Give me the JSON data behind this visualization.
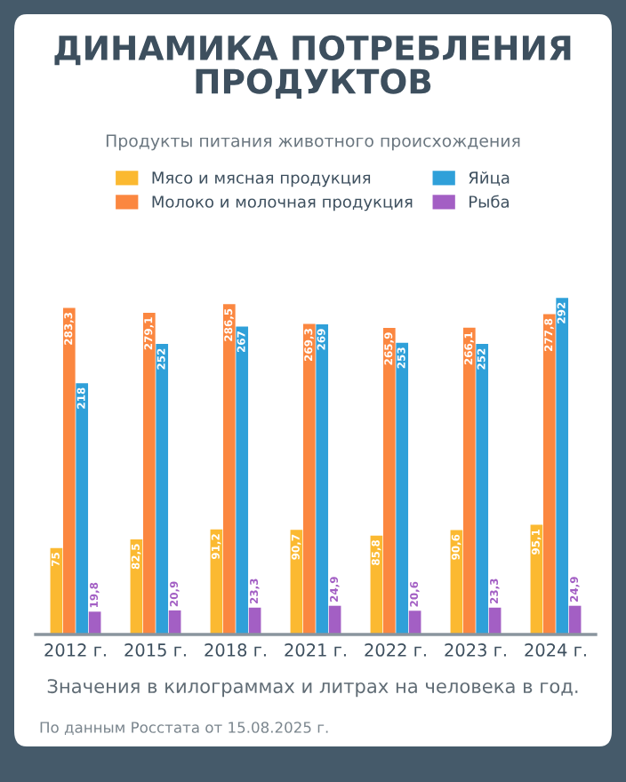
{
  "chart_data": {
    "type": "bar",
    "title": "ДИНАМИКА ПОТРЕБЛЕНИЯ\nПРОДУКТОВ",
    "subtitle": "Продукты питания животного происхождения",
    "categories": [
      "2012 г.",
      "2015 г.",
      "2018 г.",
      "2021 г.",
      "2022 г.",
      "2023 г.",
      "2024 г."
    ],
    "series": [
      {
        "name": "Мясо и мясная продукция",
        "color": "#fbb931",
        "values": [
          75,
          82.5,
          91.2,
          90.7,
          85.8,
          90.6,
          95.1
        ],
        "value_labels": [
          "75",
          "82,5",
          "91,2",
          "90,7",
          "85,8",
          "90,6",
          "95,1"
        ]
      },
      {
        "name": "Молоко и молочная продукция",
        "color": "#fb8740",
        "values": [
          283.3,
          279.1,
          286.5,
          269.3,
          265.9,
          266.1,
          277.8
        ],
        "value_labels": [
          "283,3",
          "279,1",
          "286,5",
          "269,3",
          "265,9",
          "266,1",
          "277,8"
        ]
      },
      {
        "name": "Яйца",
        "color": "#2fa0d9",
        "values": [
          218,
          252,
          267,
          269,
          253,
          252,
          292
        ],
        "value_labels": [
          "218",
          "252",
          "267",
          "269",
          "253",
          "252",
          "292"
        ]
      },
      {
        "name": "Рыба",
        "color": "#a35fc4",
        "values": [
          19.8,
          20.9,
          23.3,
          24.9,
          20.6,
          23.3,
          24.9
        ],
        "value_labels": [
          "19,8",
          "20,9",
          "23,3",
          "24,9",
          "20,6",
          "23,3",
          "24,9"
        ]
      }
    ],
    "legend": "top",
    "tick_labels": "x",
    "grid": false,
    "annotations": [
      "Значения в килограммах и литрах на человека в год.",
      "По данным Росстата от 15.08.2025 г."
    ]
  }
}
